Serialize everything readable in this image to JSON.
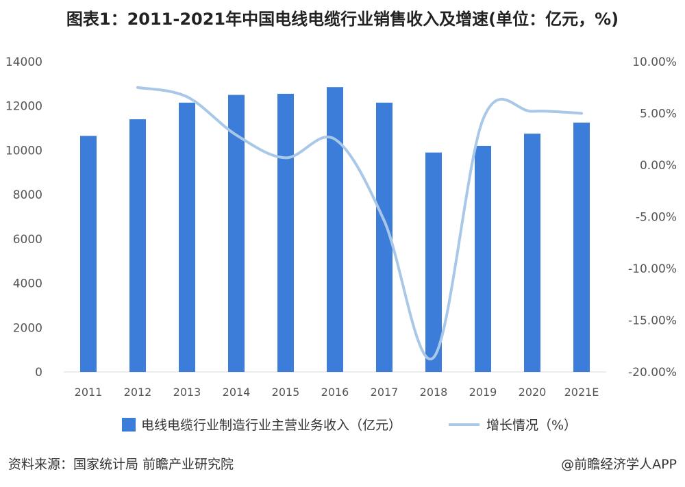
{
  "chart_data": {
    "type": "bar",
    "title": "图表1：2011-2021年中国电线电缆行业销售收入及增速(单位：亿元，%)",
    "categories": [
      "2011",
      "2012",
      "2013",
      "2014",
      "2015",
      "2016",
      "2017",
      "2018",
      "2019",
      "2020",
      "2021E"
    ],
    "series": [
      {
        "name": "电线电缆行业制造行业主营业务收入（亿元）",
        "type": "bar",
        "axis": "left",
        "values": [
          10650,
          11400,
          12150,
          12500,
          12550,
          12850,
          12150,
          9900,
          10200,
          10750,
          11250
        ]
      },
      {
        "name": "增长情况（%）",
        "type": "line",
        "axis": "right",
        "values": [
          null,
          7.5,
          6.6,
          2.9,
          0.7,
          2.5,
          -5.4,
          -18.6,
          4.4,
          5.2,
          5.0
        ]
      }
    ],
    "y_left": {
      "min": 0,
      "max": 14000,
      "ticks": [
        "0",
        "2000",
        "4000",
        "6000",
        "8000",
        "10000",
        "12000",
        "14000"
      ]
    },
    "y_right": {
      "min": -20,
      "max": 10,
      "ticks": [
        "-20.00%",
        "-15.00%",
        "-10.00%",
        "-5.00%",
        "0.00%",
        "5.00%",
        "10.00%"
      ]
    },
    "grid": false,
    "legend_position": "bottom",
    "colors": {
      "bar": "#3b7dd8",
      "line": "#a9c8e8",
      "axis_text": "#555555"
    }
  },
  "footer": {
    "source": "资料来源：国家统计局 前瞻产业研究院",
    "credit": "@前瞻经济学人APP"
  }
}
